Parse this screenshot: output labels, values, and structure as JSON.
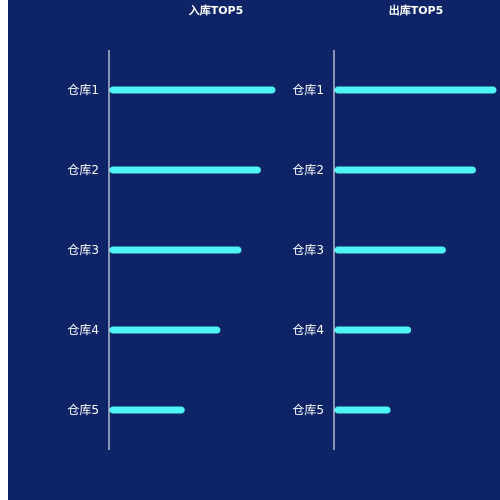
{
  "colors": {
    "background": "#0e2467",
    "bar": "#4ef5f5",
    "text": "#ffffff"
  },
  "chart_data": [
    {
      "type": "bar",
      "orientation": "horizontal",
      "title": "入库TOP5",
      "categories": [
        "仓库1",
        "仓库2",
        "仓库3",
        "仓库4",
        "仓库5"
      ],
      "values": [
        100,
        91,
        79,
        66,
        44
      ],
      "xlim": [
        0,
        100
      ],
      "grid": false
    },
    {
      "type": "bar",
      "orientation": "horizontal",
      "title": "出库TOP5",
      "categories": [
        "仓库1",
        "仓库2",
        "仓库3",
        "仓库4",
        "仓库5"
      ],
      "values": [
        100,
        87,
        68,
        46,
        33
      ],
      "xlim": [
        0,
        100
      ],
      "grid": false
    }
  ]
}
